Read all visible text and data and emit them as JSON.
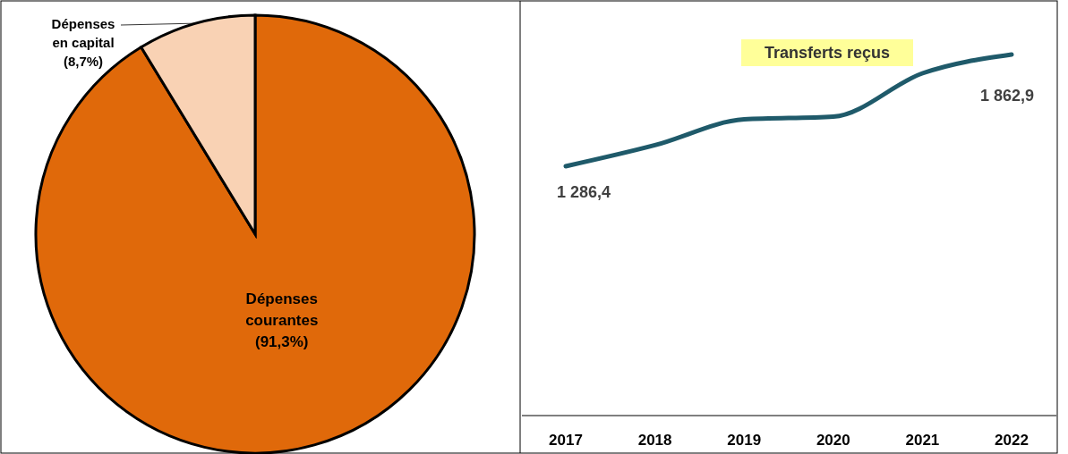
{
  "chart_data": [
    {
      "type": "pie",
      "categories": [
        "Dépenses courantes",
        "Dépenses en capital"
      ],
      "values": [
        91.3,
        8.7
      ],
      "colors": [
        "#e0690a",
        "#f9d2b4"
      ],
      "value_labels": [
        "(91,3%)",
        "(8,7%)"
      ]
    },
    {
      "type": "line",
      "title": "Transferts reçus",
      "categories": [
        "2017",
        "2018",
        "2019",
        "2020",
        "2021",
        "2022"
      ],
      "series": [
        {
          "color": "#1f5a6a",
          "values": [
            1286.4,
            1395,
            1528,
            1542,
            1766,
            1862.9
          ],
          "value_labels": [
            "1 286,4",
            null,
            null,
            null,
            null,
            "1 862,9"
          ]
        }
      ],
      "marker": "none",
      "line_style": "solid"
    }
  ]
}
